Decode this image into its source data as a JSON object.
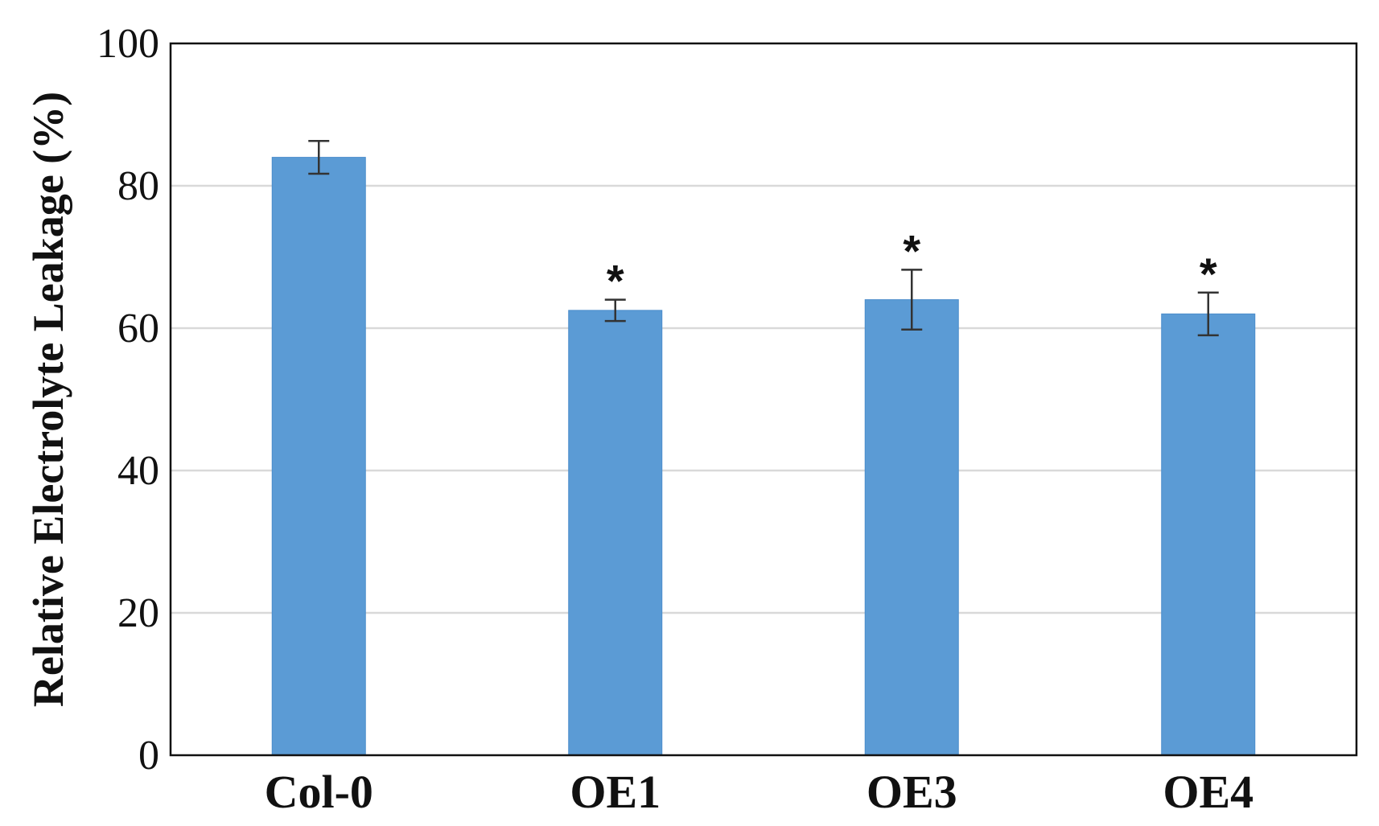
{
  "chart_data": {
    "type": "bar",
    "title": "",
    "xlabel": "",
    "ylabel": "Relative Electrolyte Leakage (%)",
    "ylim": [
      0,
      100
    ],
    "yticks": [
      0,
      20,
      40,
      60,
      80,
      100
    ],
    "grid": "horizontal",
    "categories": [
      "Col-0",
      "OE1",
      "OE3",
      "OE4"
    ],
    "values": [
      84,
      62.5,
      64,
      62
    ],
    "errors": [
      2.3,
      1.5,
      4.2,
      3.0
    ],
    "annotations": [
      "",
      "*",
      "*",
      "*"
    ],
    "colors": {
      "bar": "#5b9bd5",
      "bar_edge": "#4a8ccb",
      "grid": "#d9d9d9",
      "axis": "#111111",
      "error_bar": "#333333"
    }
  }
}
